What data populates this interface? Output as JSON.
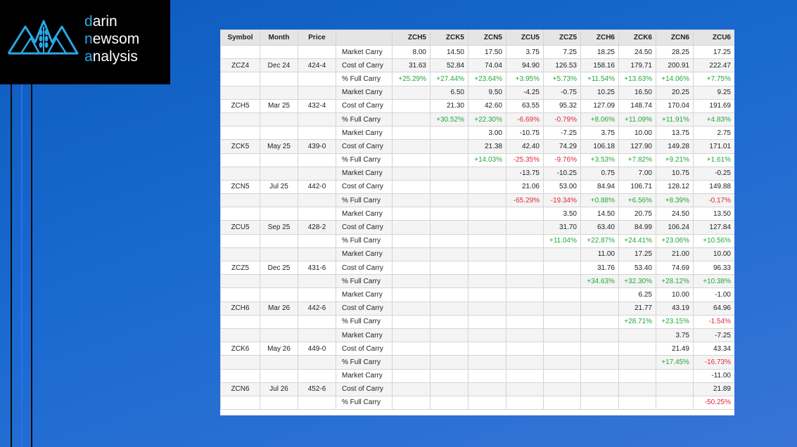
{
  "logo": {
    "line1_accent": "d",
    "line1_rest": "arin",
    "line2_accent": "n",
    "line2_rest": "ewsom",
    "line3_accent": "a",
    "line3_rest": "nalysis"
  },
  "headers": [
    "Symbol",
    "Month",
    "Price",
    "",
    "ZCH5",
    "ZCK5",
    "ZCN5",
    "ZCU5",
    "ZCZ5",
    "ZCH6",
    "ZCK6",
    "ZCN6",
    "ZCU6"
  ],
  "rows": [
    {
      "sym": "",
      "mon": "",
      "price": "",
      "label": "Market Carry",
      "vals": [
        "8.00",
        "14.50",
        "17.50",
        "3.75",
        "7.25",
        "18.25",
        "24.50",
        "28.25",
        "17.25"
      ]
    },
    {
      "sym": "ZCZ4",
      "mon": "Dec 24",
      "price": "424-4",
      "label": "Cost of Carry",
      "vals": [
        "31.63",
        "52.84",
        "74.04",
        "94.90",
        "126.53",
        "158.16",
        "179.71",
        "200.91",
        "222.47"
      ]
    },
    {
      "sym": "",
      "mon": "",
      "price": "",
      "label": "% Full Carry",
      "vals": [
        "+25.29%",
        "+27.44%",
        "+23.64%",
        "+3.95%",
        "+5.73%",
        "+11.54%",
        "+13.63%",
        "+14.06%",
        "+7.75%"
      ]
    },
    {
      "sym": "",
      "mon": "",
      "price": "",
      "label": "Market Carry",
      "vals": [
        "",
        "6.50",
        "9.50",
        "-4.25",
        "-0.75",
        "10.25",
        "16.50",
        "20.25",
        "9.25"
      ]
    },
    {
      "sym": "ZCH5",
      "mon": "Mar 25",
      "price": "432-4",
      "label": "Cost of Carry",
      "vals": [
        "",
        "21.30",
        "42.60",
        "63.55",
        "95.32",
        "127.09",
        "148.74",
        "170.04",
        "191.69"
      ]
    },
    {
      "sym": "",
      "mon": "",
      "price": "",
      "label": "% Full Carry",
      "vals": [
        "",
        "+30.52%",
        "+22.30%",
        "-6.69%",
        "-0.79%",
        "+8.06%",
        "+11.09%",
        "+11.91%",
        "+4.83%"
      ]
    },
    {
      "sym": "",
      "mon": "",
      "price": "",
      "label": "Market Carry",
      "vals": [
        "",
        "",
        "3.00",
        "-10.75",
        "-7.25",
        "3.75",
        "10.00",
        "13.75",
        "2.75"
      ]
    },
    {
      "sym": "ZCK5",
      "mon": "May 25",
      "price": "439-0",
      "label": "Cost of Carry",
      "vals": [
        "",
        "",
        "21.38",
        "42.40",
        "74.29",
        "106.18",
        "127.90",
        "149.28",
        "171.01"
      ]
    },
    {
      "sym": "",
      "mon": "",
      "price": "",
      "label": "% Full Carry",
      "vals": [
        "",
        "",
        "+14.03%",
        "-25.35%",
        "-9.76%",
        "+3.53%",
        "+7.82%",
        "+9.21%",
        "+1.61%"
      ]
    },
    {
      "sym": "",
      "mon": "",
      "price": "",
      "label": "Market Carry",
      "vals": [
        "",
        "",
        "",
        "-13.75",
        "-10.25",
        "0.75",
        "7.00",
        "10.75",
        "-0.25"
      ]
    },
    {
      "sym": "ZCN5",
      "mon": "Jul 25",
      "price": "442-0",
      "label": "Cost of Carry",
      "vals": [
        "",
        "",
        "",
        "21.06",
        "53.00",
        "84.94",
        "106.71",
        "128.12",
        "149.88"
      ]
    },
    {
      "sym": "",
      "mon": "",
      "price": "",
      "label": "% Full Carry",
      "vals": [
        "",
        "",
        "",
        "-65.29%",
        "-19.34%",
        "+0.88%",
        "+6.56%",
        "+8.39%",
        "-0.17%"
      ]
    },
    {
      "sym": "",
      "mon": "",
      "price": "",
      "label": "Market Carry",
      "vals": [
        "",
        "",
        "",
        "",
        "3.50",
        "14.50",
        "20.75",
        "24.50",
        "13.50"
      ]
    },
    {
      "sym": "ZCU5",
      "mon": "Sep 25",
      "price": "428-2",
      "label": "Cost of Carry",
      "vals": [
        "",
        "",
        "",
        "",
        "31.70",
        "63.40",
        "84.99",
        "106.24",
        "127.84"
      ]
    },
    {
      "sym": "",
      "mon": "",
      "price": "",
      "label": "% Full Carry",
      "vals": [
        "",
        "",
        "",
        "",
        "+11.04%",
        "+22.87%",
        "+24.41%",
        "+23.06%",
        "+10.56%"
      ]
    },
    {
      "sym": "",
      "mon": "",
      "price": "",
      "label": "Market Carry",
      "vals": [
        "",
        "",
        "",
        "",
        "",
        "11.00",
        "17.25",
        "21.00",
        "10.00"
      ]
    },
    {
      "sym": "ZCZ5",
      "mon": "Dec 25",
      "price": "431-6",
      "label": "Cost of Carry",
      "vals": [
        "",
        "",
        "",
        "",
        "",
        "31.76",
        "53.40",
        "74.69",
        "96.33"
      ]
    },
    {
      "sym": "",
      "mon": "",
      "price": "",
      "label": "% Full Carry",
      "vals": [
        "",
        "",
        "",
        "",
        "",
        "+34.63%",
        "+32.30%",
        "+28.12%",
        "+10.38%"
      ]
    },
    {
      "sym": "",
      "mon": "",
      "price": "",
      "label": "Market Carry",
      "vals": [
        "",
        "",
        "",
        "",
        "",
        "",
        "6.25",
        "10.00",
        "-1.00"
      ]
    },
    {
      "sym": "ZCH6",
      "mon": "Mar 26",
      "price": "442-6",
      "label": "Cost of Carry",
      "vals": [
        "",
        "",
        "",
        "",
        "",
        "",
        "21.77",
        "43.19",
        "64.96"
      ]
    },
    {
      "sym": "",
      "mon": "",
      "price": "",
      "label": "% Full Carry",
      "vals": [
        "",
        "",
        "",
        "",
        "",
        "",
        "+28.71%",
        "+23.15%",
        "-1.54%"
      ]
    },
    {
      "sym": "",
      "mon": "",
      "price": "",
      "label": "Market Carry",
      "vals": [
        "",
        "",
        "",
        "",
        "",
        "",
        "",
        "3.75",
        "-7.25"
      ]
    },
    {
      "sym": "ZCK6",
      "mon": "May 26",
      "price": "449-0",
      "label": "Cost of Carry",
      "vals": [
        "",
        "",
        "",
        "",
        "",
        "",
        "",
        "21.49",
        "43.34"
      ]
    },
    {
      "sym": "",
      "mon": "",
      "price": "",
      "label": "% Full Carry",
      "vals": [
        "",
        "",
        "",
        "",
        "",
        "",
        "",
        "+17.45%",
        "-16.73%"
      ]
    },
    {
      "sym": "",
      "mon": "",
      "price": "",
      "label": "Market Carry",
      "vals": [
        "",
        "",
        "",
        "",
        "",
        "",
        "",
        "",
        "-11.00"
      ]
    },
    {
      "sym": "ZCN6",
      "mon": "Jul 26",
      "price": "452-6",
      "label": "Cost of Carry",
      "vals": [
        "",
        "",
        "",
        "",
        "",
        "",
        "",
        "",
        "21.89"
      ]
    },
    {
      "sym": "",
      "mon": "",
      "price": "",
      "label": "% Full Carry",
      "vals": [
        "",
        "",
        "",
        "",
        "",
        "",
        "",
        "",
        "-50.25%"
      ]
    }
  ],
  "colors": {
    "positive": "#22a83a",
    "negative": "#e0283a",
    "logo_accent": "#2aa8e6",
    "background": "#1a6ad0"
  }
}
